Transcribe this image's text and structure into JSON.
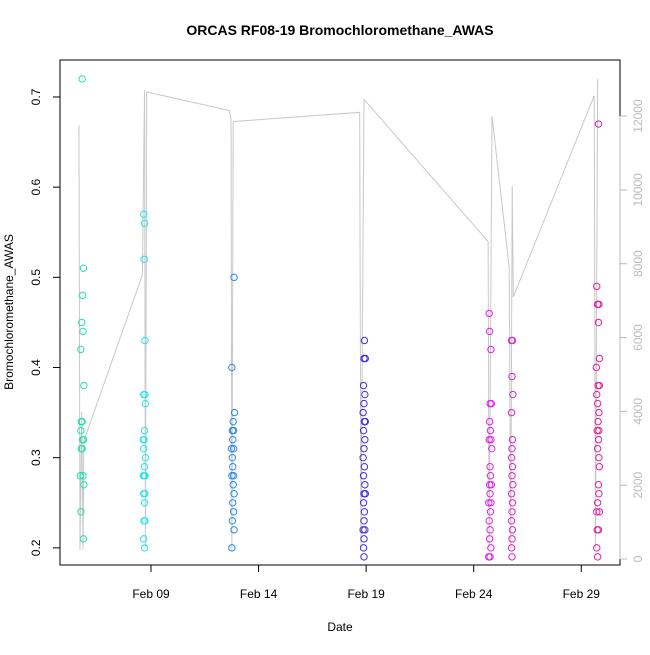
{
  "chart_data": {
    "type": "scatter",
    "title": "ORCAS RF08-19 Bromochloromethane_AWAS",
    "x_label": "Date",
    "y_label": "Bromochloromethane_AWAS",
    "xlim": [
      4.77,
      30.8
    ],
    "xticks": [
      {
        "value": 9,
        "label": "Feb 09"
      },
      {
        "value": 14,
        "label": "Feb 14"
      },
      {
        "value": 19,
        "label": "Feb 19"
      },
      {
        "value": 24,
        "label": "Feb 24"
      },
      {
        "value": 29,
        "label": "Feb 29"
      }
    ],
    "ylim": [
      0.181,
      0.741
    ],
    "yticks": [
      0.2,
      0.3,
      0.4,
      0.5,
      0.6,
      0.7
    ],
    "y2lim": [
      -163,
      13518
    ],
    "y2ticks": [
      0,
      2000,
      4000,
      6000,
      8000,
      10000,
      12000
    ],
    "y2_color": "#bbbbbb",
    "series": [
      {
        "color": "#22e0b0",
        "x": [
          5.8,
          5.86,
          5.82,
          5.78,
          5.84,
          5.74,
          5.88,
          5.76,
          5.8,
          5.74,
          5.82,
          5.86,
          5.76,
          5.8,
          5.72,
          5.84,
          5.88,
          5.74,
          5.86
        ],
        "values": [
          0.72,
          0.51,
          0.48,
          0.45,
          0.44,
          0.42,
          0.38,
          0.34,
          0.34,
          0.33,
          0.32,
          0.32,
          0.31,
          0.31,
          0.28,
          0.28,
          0.27,
          0.24,
          0.21
        ]
      },
      {
        "color": "#22e6f0",
        "x": [
          8.66,
          8.7,
          8.68,
          8.72,
          8.66,
          8.72,
          8.74,
          8.7,
          8.64,
          8.68,
          8.66,
          8.74,
          8.7,
          8.64,
          8.68,
          8.72,
          8.66,
          8.72,
          8.7,
          8.68,
          8.72,
          8.66,
          8.7
        ],
        "values": [
          0.57,
          0.56,
          0.52,
          0.43,
          0.37,
          0.37,
          0.36,
          0.33,
          0.32,
          0.32,
          0.31,
          0.3,
          0.29,
          0.28,
          0.28,
          0.28,
          0.26,
          0.26,
          0.25,
          0.23,
          0.23,
          0.21,
          0.2
        ]
      },
      {
        "color": "#2a8ae6",
        "x": [
          12.86,
          12.76,
          12.88,
          12.82,
          12.78,
          12.84,
          12.8,
          12.74,
          12.84,
          12.78,
          12.8,
          12.76,
          12.84,
          12.82,
          12.86,
          12.8,
          12.84,
          12.78,
          12.86,
          12.76
        ],
        "values": [
          0.5,
          0.4,
          0.35,
          0.34,
          0.33,
          0.33,
          0.32,
          0.31,
          0.31,
          0.3,
          0.29,
          0.28,
          0.28,
          0.27,
          0.26,
          0.25,
          0.24,
          0.23,
          0.22,
          0.2
        ]
      },
      {
        "color": "#3f2fe0",
        "x": [
          18.92,
          18.9,
          18.96,
          18.88,
          18.94,
          18.9,
          18.86,
          18.92,
          18.96,
          18.88,
          18.94,
          18.9,
          18.86,
          18.92,
          18.88,
          18.94,
          18.9,
          18.96,
          18.88,
          18.92,
          18.9,
          18.86,
          18.94,
          18.9,
          18.88,
          18.9
        ],
        "values": [
          0.43,
          0.41,
          0.41,
          0.38,
          0.37,
          0.36,
          0.35,
          0.34,
          0.34,
          0.33,
          0.32,
          0.31,
          0.3,
          0.29,
          0.28,
          0.27,
          0.26,
          0.26,
          0.25,
          0.24,
          0.23,
          0.22,
          0.22,
          0.21,
          0.2,
          0.19
        ]
      },
      {
        "color": "#e022e6",
        "x": [
          24.72,
          24.74,
          24.8,
          24.76,
          24.82,
          24.74,
          24.78,
          24.72,
          24.8,
          24.84,
          24.76,
          24.78,
          24.74,
          24.82,
          24.76,
          24.7,
          24.8,
          24.78,
          24.72,
          24.76,
          24.74,
          24.8,
          24.7,
          24.76
        ],
        "values": [
          0.46,
          0.44,
          0.42,
          0.36,
          0.36,
          0.34,
          0.33,
          0.32,
          0.32,
          0.31,
          0.29,
          0.28,
          0.27,
          0.27,
          0.26,
          0.25,
          0.25,
          0.24,
          0.23,
          0.22,
          0.21,
          0.2,
          0.19,
          0.19
        ]
      },
      {
        "color": "#e022cc",
        "x": [
          25.76,
          25.8,
          25.78,
          25.82,
          25.76,
          25.8,
          25.78,
          25.76,
          25.8,
          25.78,
          25.82,
          25.76,
          25.8,
          25.78,
          25.76,
          25.8,
          25.78,
          25.76,
          25.78
        ],
        "values": [
          0.43,
          0.43,
          0.39,
          0.37,
          0.35,
          0.32,
          0.31,
          0.3,
          0.29,
          0.28,
          0.27,
          0.26,
          0.25,
          0.24,
          0.23,
          0.22,
          0.21,
          0.2,
          0.19
        ]
      },
      {
        "color": "#e0229a",
        "x": [
          29.8,
          29.72,
          29.76,
          29.82,
          29.8,
          29.84,
          29.7,
          29.78,
          29.84,
          29.72,
          29.76,
          29.82,
          29.78,
          29.74,
          29.82,
          29.8,
          29.76,
          29.82,
          29.84,
          29.8,
          29.82,
          29.76,
          29.72,
          29.84,
          29.74,
          29.8,
          29.72,
          29.76
        ],
        "values": [
          0.67,
          0.49,
          0.47,
          0.47,
          0.45,
          0.41,
          0.4,
          0.38,
          0.38,
          0.37,
          0.36,
          0.35,
          0.34,
          0.33,
          0.33,
          0.32,
          0.31,
          0.3,
          0.29,
          0.27,
          0.26,
          0.25,
          0.24,
          0.24,
          0.22,
          0.22,
          0.2,
          0.19
        ]
      },
      {
        "type": "line",
        "axis": "y2",
        "color": "#c8c8c8",
        "x": [
          5.65,
          5.7,
          5.78,
          5.84,
          5.88,
          8.6,
          8.7,
          8.74,
          8.8,
          12.65,
          12.72,
          12.76,
          12.82,
          18.7,
          18.76,
          18.9,
          24.67,
          24.72,
          24.85,
          25.65,
          25.72,
          25.79,
          25.84,
          29.6,
          29.66,
          29.76
        ],
        "values": [
          11750,
          250,
          4000,
          250,
          3200,
          7700,
          12700,
          300,
          12650,
          12150,
          11900,
          250,
          11850,
          12100,
          300,
          12450,
          8600,
          300,
          12000,
          7900,
          300,
          10100,
          7100,
          12550,
          300,
          13000
        ]
      }
    ]
  }
}
